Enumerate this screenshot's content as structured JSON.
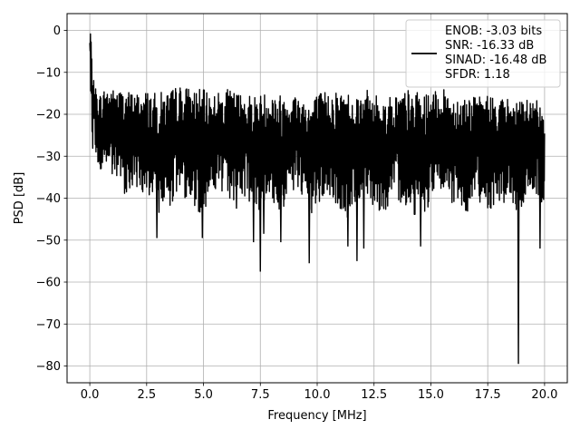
{
  "chart_data": {
    "type": "line",
    "title": "",
    "xlabel": "Frequency [MHz]",
    "ylabel": "PSD [dB]",
    "xlim": [
      -1.0,
      21.0
    ],
    "ylim": [
      -84,
      4
    ],
    "x_ticks": [
      0.0,
      2.5,
      5.0,
      7.5,
      10.0,
      12.5,
      15.0,
      17.5,
      20.0
    ],
    "x_tick_labels": [
      "0.0",
      "2.5",
      "5.0",
      "7.5",
      "10.0",
      "12.5",
      "15.0",
      "17.5",
      "20.0"
    ],
    "y_ticks": [
      0,
      -10,
      -20,
      -30,
      -40,
      -50,
      -60,
      -70,
      -80
    ],
    "y_tick_labels": [
      "0",
      "−10",
      "−20",
      "−30",
      "−40",
      "−50",
      "−60",
      "−70",
      "−80"
    ],
    "grid": true,
    "legend": {
      "placement": "top-right",
      "entries": [
        "ENOB: -3.03 bits",
        "SNR: -16.33 dB",
        "SINAD: -16.48 dB",
        "SFDR: 1.18"
      ]
    },
    "series": [
      {
        "color": "#000000",
        "x": [
          0.0,
          0.04,
          0.08,
          0.12,
          0.2,
          0.3,
          0.5,
          0.7,
          1.0,
          1.5,
          2.0,
          2.5,
          2.9,
          3.5,
          4.0,
          4.9,
          5.5,
          6.0,
          6.8,
          7.5,
          8.0,
          8.4,
          9.0,
          9.7,
          10.0,
          10.5,
          11.0,
          11.4,
          11.7,
          12.1,
          12.5,
          13.0,
          13.5,
          14.0,
          14.6,
          15.0,
          15.5,
          16.0,
          16.5,
          17.0,
          17.5,
          18.0,
          18.5,
          18.9,
          19.3,
          19.8,
          20.0
        ],
        "y": [
          -3,
          0,
          -8,
          -16,
          -18,
          -22,
          -25,
          -23,
          -22,
          -25,
          -24,
          -27,
          -30,
          -28,
          -25,
          -30,
          -24,
          -27,
          -26,
          -29,
          -27,
          -30,
          -24,
          -31,
          -28,
          -26,
          -29,
          -32,
          -27,
          -25,
          -28,
          -30,
          -26,
          -29,
          -31,
          -27,
          -25,
          -28,
          -30,
          -26,
          -29,
          -27,
          -28,
          -30,
          -25,
          -27,
          -30
        ],
        "upper_envelope": [
          -3,
          0,
          -6,
          -10,
          -13,
          -14,
          -15,
          -13,
          -14,
          -14,
          -15,
          -14,
          -15,
          -14,
          -13,
          -14,
          -15,
          -14,
          -15,
          -15,
          -14,
          -15,
          -15,
          -16,
          -15,
          -14,
          -14,
          -14,
          -15,
          -14,
          -15,
          -16,
          -15,
          -14,
          -15,
          -15,
          -14,
          -15,
          -15,
          -16,
          -15,
          -16,
          -16,
          -17,
          -16,
          -17,
          -18
        ],
        "lower_envelope": [
          -5,
          -15,
          -22,
          -28,
          -29,
          -31,
          -35,
          -32,
          -36,
          -39,
          -38,
          -39,
          -49.5,
          -42,
          -44,
          -49.5,
          -43,
          -45,
          -50.5,
          -57.5,
          -48,
          -51,
          -46,
          -55.5,
          -48,
          -45,
          -51.5,
          -55,
          -52,
          -50,
          -47,
          -46,
          -50,
          -48,
          -51,
          -44,
          -46,
          -45,
          -48,
          -46,
          -44,
          -47,
          -45,
          -79.5,
          -46,
          -52,
          -40
        ],
        "dips": [
          {
            "x": 2.95,
            "y": -49.5
          },
          {
            "x": 4.95,
            "y": -49.5
          },
          {
            "x": 6.45,
            "y": -42.5
          },
          {
            "x": 7.2,
            "y": -50.5
          },
          {
            "x": 7.5,
            "y": -57.5
          },
          {
            "x": 7.65,
            "y": -48.5
          },
          {
            "x": 8.4,
            "y": -50.5
          },
          {
            "x": 9.65,
            "y": -55.5
          },
          {
            "x": 11.35,
            "y": -51.5
          },
          {
            "x": 11.75,
            "y": -55.0
          },
          {
            "x": 12.05,
            "y": -52.0
          },
          {
            "x": 14.55,
            "y": -51.5
          },
          {
            "x": 18.85,
            "y": -79.5
          },
          {
            "x": 19.8,
            "y": -52.0
          }
        ]
      }
    ]
  }
}
